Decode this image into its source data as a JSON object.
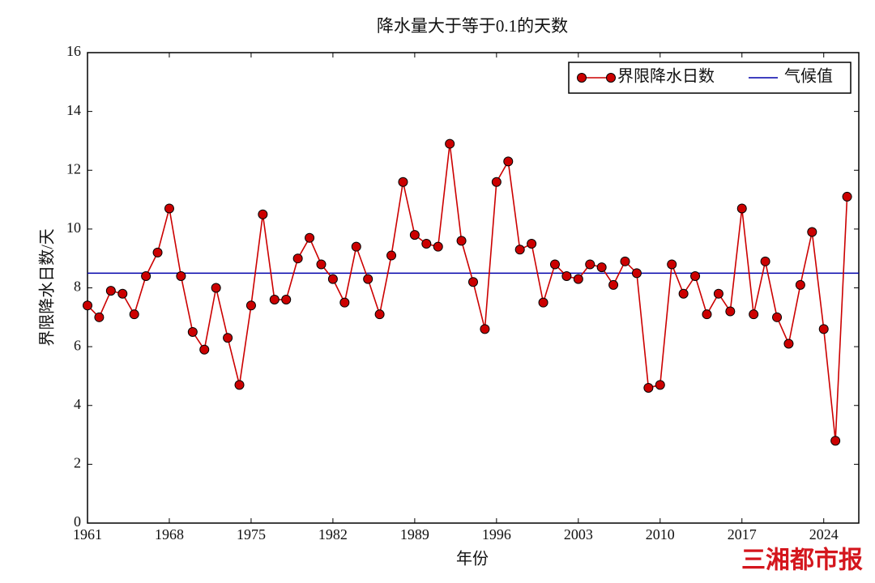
{
  "chart_data": {
    "type": "line",
    "title": "降水量大于等于0.1的天数",
    "x_label": "年份",
    "y_label": "界限降水日数/天",
    "x": [
      1961,
      1962,
      1963,
      1964,
      1965,
      1966,
      1967,
      1968,
      1969,
      1970,
      1971,
      1972,
      1973,
      1974,
      1975,
      1976,
      1977,
      1978,
      1979,
      1980,
      1981,
      1982,
      1983,
      1984,
      1985,
      1986,
      1987,
      1988,
      1989,
      1990,
      1991,
      1992,
      1993,
      1994,
      1995,
      1996,
      1997,
      1998,
      1999,
      2000,
      2001,
      2002,
      2003,
      2004,
      2005,
      2006,
      2007,
      2008,
      2009,
      2010,
      2011,
      2012,
      2013,
      2014,
      2015,
      2016,
      2017,
      2018,
      2019,
      2020,
      2021,
      2022,
      2023,
      2024,
      2025,
      2026
    ],
    "series": [
      {
        "name": "界限降水日数",
        "color": "#cc0000",
        "values": [
          7.4,
          7.0,
          7.9,
          7.8,
          7.1,
          8.4,
          9.2,
          10.7,
          8.4,
          6.5,
          5.9,
          8.0,
          6.3,
          4.7,
          7.4,
          10.5,
          7.6,
          7.6,
          9.0,
          9.7,
          8.8,
          8.3,
          7.5,
          9.4,
          8.3,
          7.1,
          9.1,
          11.6,
          9.8,
          9.5,
          9.4,
          12.9,
          9.6,
          8.2,
          6.6,
          11.6,
          12.3,
          9.3,
          9.5,
          7.5,
          8.8,
          8.4,
          8.3,
          8.8,
          8.7,
          8.1,
          8.9,
          8.5,
          4.6,
          4.7,
          8.8,
          7.8,
          8.4,
          7.1,
          7.8,
          7.2,
          10.7,
          7.1,
          8.9,
          7.0,
          6.1,
          8.1,
          9.9,
          6.6,
          2.8,
          11.1
        ]
      }
    ],
    "reference": {
      "name": "气候值",
      "value": 8.5,
      "color": "#0000aa"
    },
    "xlim": [
      1961,
      2027
    ],
    "xticks": [
      1961,
      1968,
      1975,
      1982,
      1989,
      1996,
      2003,
      2010,
      2017,
      2024
    ],
    "ylim": [
      0,
      16
    ],
    "yticks": [
      0,
      2,
      4,
      6,
      8,
      10,
      12,
      14,
      16
    ],
    "legend": "upper right"
  },
  "watermark": "三湘都市报"
}
